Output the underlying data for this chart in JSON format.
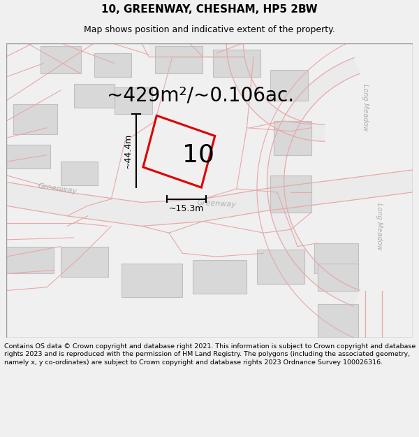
{
  "title": "10, GREENWAY, CHESHAM, HP5 2BW",
  "subtitle": "Map shows position and indicative extent of the property.",
  "area_text": "~429m²/~0.106ac.",
  "property_number": "10",
  "dim_height": "~44.4m",
  "dim_width": "~15.3m",
  "footer": "Contains OS data © Crown copyright and database right 2021. This information is subject to Crown copyright and database rights 2023 and is reproduced with the permission of HM Land Registry. The polygons (including the associated geometry, namely x, y co-ordinates) are subject to Crown copyright and database rights 2023 Ordnance Survey 100026316.",
  "bg_color": "#f0f0f0",
  "map_bg": "#ffffff",
  "road_color": "#e8a8a8",
  "road_fill": "#e8e8e8",
  "building_fill": "#d8d8d8",
  "building_edge": "#c0c0c0",
  "property_edge": "#dd0000",
  "title_fontsize": 11,
  "subtitle_fontsize": 9,
  "area_fontsize": 20,
  "dim_fontsize": 9,
  "footer_fontsize": 6.8,
  "number_fontsize": 26,
  "street_label_color": "#b0b0b0",
  "street_label_fontsize": 8
}
